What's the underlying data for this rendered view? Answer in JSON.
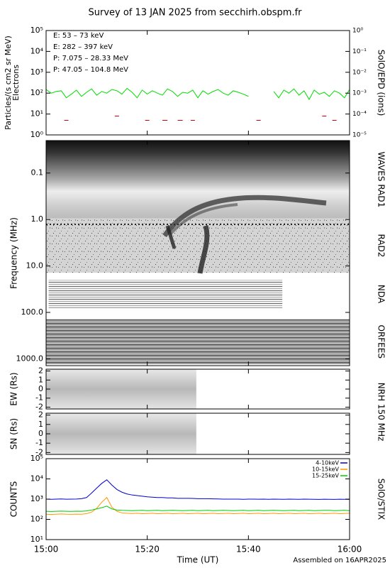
{
  "title": "Survey of 13 JAN 2025 from secchirh.obspm.fr",
  "footnote": "Assembled on 16APR2025",
  "chart_data": [
    {
      "type": "line",
      "ylabel": [
        "Particles/(s cm2 sr MeV)",
        "Electrons"
      ],
      "y2label": "SolO/EPD (ions)",
      "ylog": true,
      "ylim": [
        1,
        100000
      ],
      "yticks": [
        {
          "value": 1,
          "label": "10⁰"
        },
        {
          "value": 10,
          "label": "10¹"
        },
        {
          "value": 100,
          "label": "10²"
        },
        {
          "value": 1000,
          "label": "10³"
        },
        {
          "value": 10000,
          "label": "10⁴"
        },
        {
          "value": 100000,
          "label": "10⁵"
        }
      ],
      "y2lim": [
        1e-05,
        1
      ],
      "y2ticks": [
        {
          "value": 1e-05,
          "label": "10⁻⁵"
        },
        {
          "value": 0.0001,
          "label": "10⁻⁴"
        },
        {
          "value": 0.001,
          "label": "10⁻³"
        },
        {
          "value": 0.01,
          "label": "10⁻²"
        },
        {
          "value": 0.1,
          "label": "10⁻¹"
        },
        {
          "value": 1,
          "label": "10⁰"
        }
      ],
      "legend": "upper left",
      "x": [
        0,
        1,
        2,
        3,
        4,
        5,
        6,
        7,
        8,
        9,
        10,
        11,
        12,
        13,
        14,
        15,
        16,
        17,
        18,
        19,
        20,
        21,
        22,
        23,
        24,
        25,
        26,
        27,
        28,
        29,
        30,
        31,
        32,
        33,
        34,
        35,
        36,
        37,
        38,
        39,
        40,
        41,
        42,
        43,
        44,
        45,
        46,
        47,
        48,
        49,
        50,
        51,
        52,
        53,
        54,
        55,
        56,
        57,
        58,
        59,
        60
      ],
      "series": [
        {
          "name": "E: 53 – 73 keV",
          "color": "#00dd00",
          "values": [
            150,
            100,
            120,
            130,
            60,
            90,
            140,
            70,
            110,
            160,
            80,
            120,
            100,
            150,
            130,
            90,
            170,
            110,
            60,
            140,
            90,
            130,
            100,
            80,
            160,
            120,
            70,
            110,
            100,
            140,
            60,
            130,
            90,
            120,
            150,
            100,
            80,
            130,
            110,
            90,
            70,
            null,
            null,
            null,
            null,
            120,
            60,
            140,
            100,
            160,
            80,
            130,
            50,
            140,
            90,
            110,
            70,
            130,
            100,
            60,
            150
          ]
        },
        {
          "name": "E: 282 – 397 keV",
          "color": "#d00000",
          "values": [
            null,
            null,
            null,
            null,
            5,
            null,
            null,
            null,
            null,
            null,
            null,
            null,
            null,
            null,
            8,
            null,
            null,
            null,
            null,
            null,
            5,
            null,
            null,
            5,
            5,
            null,
            5,
            5,
            null,
            5,
            null,
            null,
            null,
            null,
            null,
            null,
            null,
            null,
            null,
            null,
            null,
            null,
            5,
            null,
            null,
            null,
            null,
            null,
            null,
            null,
            null,
            null,
            null,
            null,
            null,
            8,
            null,
            5,
            null,
            null,
            null
          ]
        },
        {
          "name": "P: 7.075 – 28.33 MeV",
          "color": "#000000",
          "values": [
            null,
            null,
            null,
            null,
            null,
            null,
            null,
            null,
            null,
            null,
            null,
            null,
            null,
            null,
            null,
            null,
            null,
            null,
            null,
            null,
            null,
            null,
            null,
            null,
            null,
            null,
            null,
            null,
            null,
            null,
            null,
            null,
            null,
            null,
            null,
            null,
            null,
            null,
            null,
            null,
            null,
            null,
            null,
            null,
            null,
            null,
            null,
            null,
            null,
            null,
            null,
            null,
            null,
            null,
            null,
            null,
            null,
            null,
            null,
            null,
            null
          ]
        },
        {
          "name": "P: 47.05 – 104.8 MeV",
          "color": "#0000aa",
          "values": [
            null,
            null,
            null,
            null,
            null,
            null,
            null,
            null,
            null,
            null,
            null,
            null,
            null,
            null,
            null,
            null,
            null,
            null,
            null,
            null,
            null,
            null,
            null,
            null,
            null,
            null,
            null,
            null,
            null,
            null,
            null,
            null,
            null,
            null,
            null,
            null,
            null,
            null,
            null,
            null,
            null,
            null,
            null,
            null,
            null,
            null,
            null,
            null,
            null,
            null,
            null,
            null,
            null,
            null,
            null,
            null,
            null,
            null,
            null,
            null,
            null
          ]
        }
      ]
    },
    {
      "type": "spectrogram",
      "ylabel": "Frequency (MHz)",
      "ylog": true,
      "invert_y": true,
      "ylim": [
        0.02,
        1400
      ],
      "yticks": [
        0.1,
        {
          "value": 1,
          "label": "1.0"
        },
        {
          "value": 10,
          "label": "10.0"
        },
        {
          "value": 100,
          "label": "100.0"
        },
        {
          "value": 1000,
          "label": "1000.0"
        }
      ],
      "bands": [
        {
          "name": "WAVES RAD1",
          "range": [
            0.02,
            0.95
          ],
          "time_range": [
            0,
            60
          ]
        },
        {
          "name": "RAD2",
          "range": [
            0.95,
            14
          ],
          "time_range": [
            0,
            60
          ]
        },
        {
          "name": "NDA",
          "range": [
            20,
            80
          ],
          "time_range": [
            0.5,
            46.7
          ]
        },
        {
          "name": "ORFEES",
          "range": [
            140,
            1300
          ],
          "time_range": [
            0,
            60
          ]
        }
      ]
    },
    {
      "type": "image",
      "ylabel": "EW (Rs)",
      "y2label": "NRH 150 MHz",
      "ylim": [
        -2.2,
        2.2
      ],
      "yticks": [
        -2,
        -1,
        0,
        1,
        2
      ],
      "time_range": [
        0,
        29.7
      ]
    },
    {
      "type": "image",
      "ylabel": "SN (Rs)",
      "ylim": [
        -2.2,
        2.2
      ],
      "yticks": [
        -2,
        -1,
        0,
        1,
        2
      ],
      "time_range": [
        0,
        29.7
      ]
    },
    {
      "type": "line",
      "ylabel": "COUNTS",
      "y2label": "SolO/STIX",
      "xlabel": "Time (UT)",
      "xlim": [
        0,
        60
      ],
      "xticks": [
        {
          "value": 0,
          "label": "15:00"
        },
        {
          "value": 20,
          "label": "15:20"
        },
        {
          "value": 40,
          "label": "15:40"
        },
        {
          "value": 60,
          "label": "16:00"
        }
      ],
      "ylog": true,
      "ylim": [
        10,
        100000
      ],
      "yticks": [
        {
          "value": 10,
          "label": "10¹"
        },
        {
          "value": 100,
          "label": "10²"
        },
        {
          "value": 1000,
          "label": "10³"
        },
        {
          "value": 10000,
          "label": "10⁴"
        },
        {
          "value": 100000,
          "label": "10⁵"
        }
      ],
      "legend": "upper right",
      "x": [
        0,
        1,
        2,
        3,
        4,
        5,
        6,
        7,
        8,
        9,
        10,
        11,
        12,
        13,
        14,
        15,
        16,
        17,
        18,
        19,
        20,
        21,
        22,
        23,
        24,
        25,
        26,
        27,
        28,
        29,
        30,
        31,
        32,
        33,
        34,
        35,
        36,
        37,
        38,
        39,
        40,
        41,
        42,
        43,
        44,
        45,
        46,
        47,
        48,
        49,
        50,
        51,
        52,
        53,
        54,
        55,
        56,
        57,
        58,
        59,
        60
      ],
      "series": [
        {
          "name": "4-10keV",
          "color": "#0000cc",
          "values": [
            1000,
            980,
            1000,
            1020,
            990,
            1000,
            1010,
            1050,
            1200,
            2000,
            3500,
            6000,
            9000,
            5000,
            3000,
            2200,
            1800,
            1600,
            1500,
            1400,
            1300,
            1250,
            1200,
            1200,
            1150,
            1150,
            1100,
            1100,
            1100,
            1080,
            1050,
            1050,
            1050,
            1030,
            1020,
            1000,
            1000,
            1000,
            1000,
            980,
            1000,
            1000,
            990,
            1000,
            980,
            1000,
            990,
            980,
            1000,
            990,
            980,
            1000,
            990,
            980,
            970,
            990,
            980,
            970,
            990,
            980,
            970
          ]
        },
        {
          "name": "10-15keV",
          "color": "#ff9900",
          "values": [
            180,
            175,
            180,
            185,
            180,
            178,
            182,
            180,
            190,
            230,
            350,
            700,
            1200,
            400,
            250,
            210,
            200,
            195,
            200,
            190,
            195,
            200,
            190,
            195,
            200,
            190,
            195,
            200,
            190,
            195,
            200,
            190,
            195,
            200,
            190,
            195,
            200,
            190,
            195,
            200,
            190,
            195,
            200,
            190,
            195,
            200,
            190,
            195,
            200,
            190,
            195,
            200,
            190,
            195,
            200,
            190,
            195,
            200,
            190,
            195,
            200
          ]
        },
        {
          "name": "15-25keV",
          "color": "#00cc00",
          "values": [
            250,
            245,
            250,
            255,
            250,
            248,
            252,
            250,
            260,
            290,
            330,
            380,
            450,
            330,
            290,
            280,
            275,
            270,
            275,
            280,
            270,
            275,
            280,
            270,
            275,
            280,
            275,
            270,
            275,
            280,
            270,
            275,
            280,
            270,
            275,
            280,
            275,
            270,
            275,
            280,
            270,
            275,
            280,
            270,
            275,
            280,
            275,
            270,
            275,
            280,
            270,
            275,
            280,
            270,
            275,
            280,
            280,
            270,
            275,
            280,
            270
          ]
        }
      ]
    }
  ]
}
